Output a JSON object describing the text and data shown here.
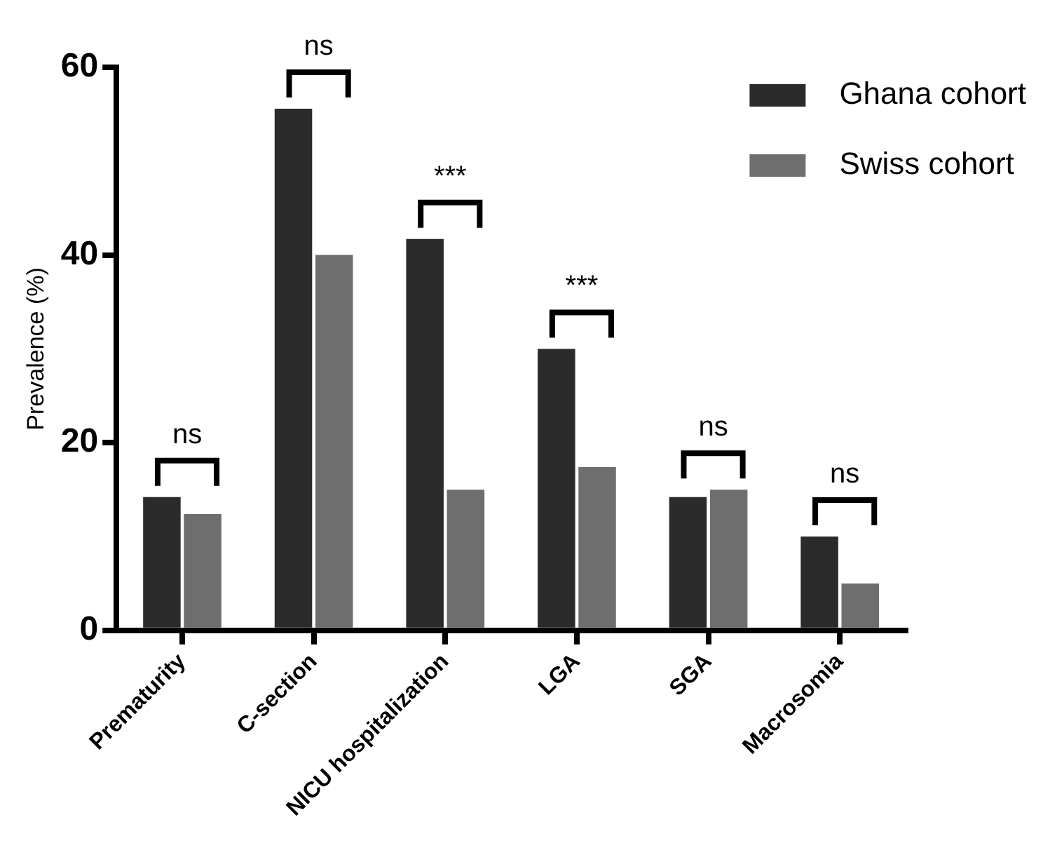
{
  "chart_data": {
    "type": "bar",
    "ylabel": "Prevalence (%)",
    "categories": [
      "Prematurity",
      "C-section",
      "NICU hospitalization",
      "LGA",
      "SGA",
      "Macrosomia"
    ],
    "series": [
      {
        "name": "Ghana cohort",
        "color": "#2b2b2b",
        "values": [
          14.2,
          55.6,
          41.7,
          30,
          14.2,
          10
        ]
      },
      {
        "name": "Swiss cohort",
        "color": "#6e6e6e",
        "values": [
          12.4,
          40,
          15,
          17.4,
          15,
          5
        ]
      }
    ],
    "ylim": [
      0,
      60
    ],
    "yticks": [
      0,
      20,
      40,
      60
    ],
    "grid": false,
    "legend": "top right",
    "annotations": [
      "ns",
      "ns",
      "***",
      "***",
      "ns",
      "ns"
    ]
  }
}
